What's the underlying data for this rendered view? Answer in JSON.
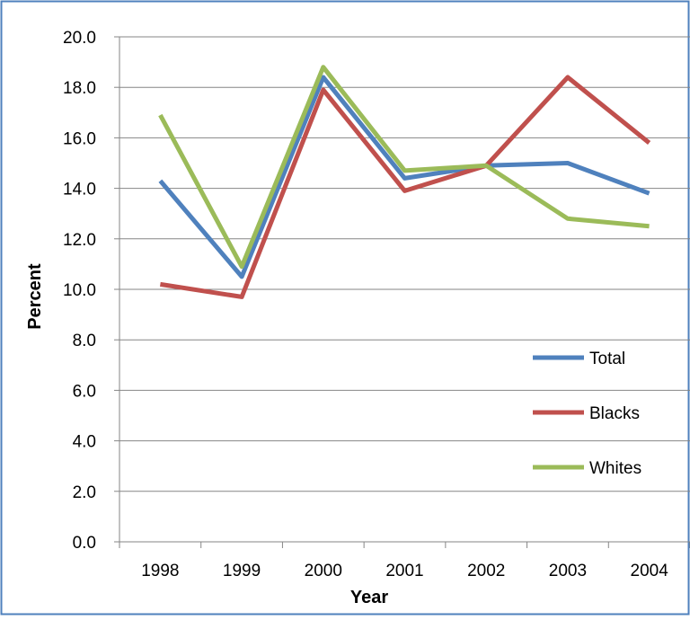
{
  "chart_data": {
    "type": "line",
    "title": "",
    "xlabel": "Year",
    "ylabel": "Percent",
    "categories": [
      "1998",
      "1999",
      "2000",
      "2001",
      "2002",
      "2003",
      "2004"
    ],
    "ylim": [
      0,
      20
    ],
    "ytick_labels": [
      "0.0",
      "2.0",
      "4.0",
      "6.0",
      "8.0",
      "10.0",
      "12.0",
      "14.0",
      "16.0",
      "18.0",
      "20.0"
    ],
    "grid": "horizontal",
    "legend_placement": "right",
    "series": [
      {
        "name": "Total",
        "color": "#4F81BD",
        "values": [
          14.3,
          10.5,
          18.4,
          14.4,
          14.9,
          15.0,
          13.8
        ]
      },
      {
        "name": "Blacks",
        "color": "#C0504D",
        "values": [
          10.2,
          9.7,
          17.9,
          13.9,
          14.9,
          18.4,
          15.8
        ]
      },
      {
        "name": "Whites",
        "color": "#9BBB59",
        "values": [
          16.9,
          10.9,
          18.8,
          14.7,
          14.9,
          12.8,
          12.5
        ]
      }
    ]
  },
  "colors": {
    "frame_border": "#4F81BD",
    "gridline": "#868686",
    "axis": "#868686"
  }
}
